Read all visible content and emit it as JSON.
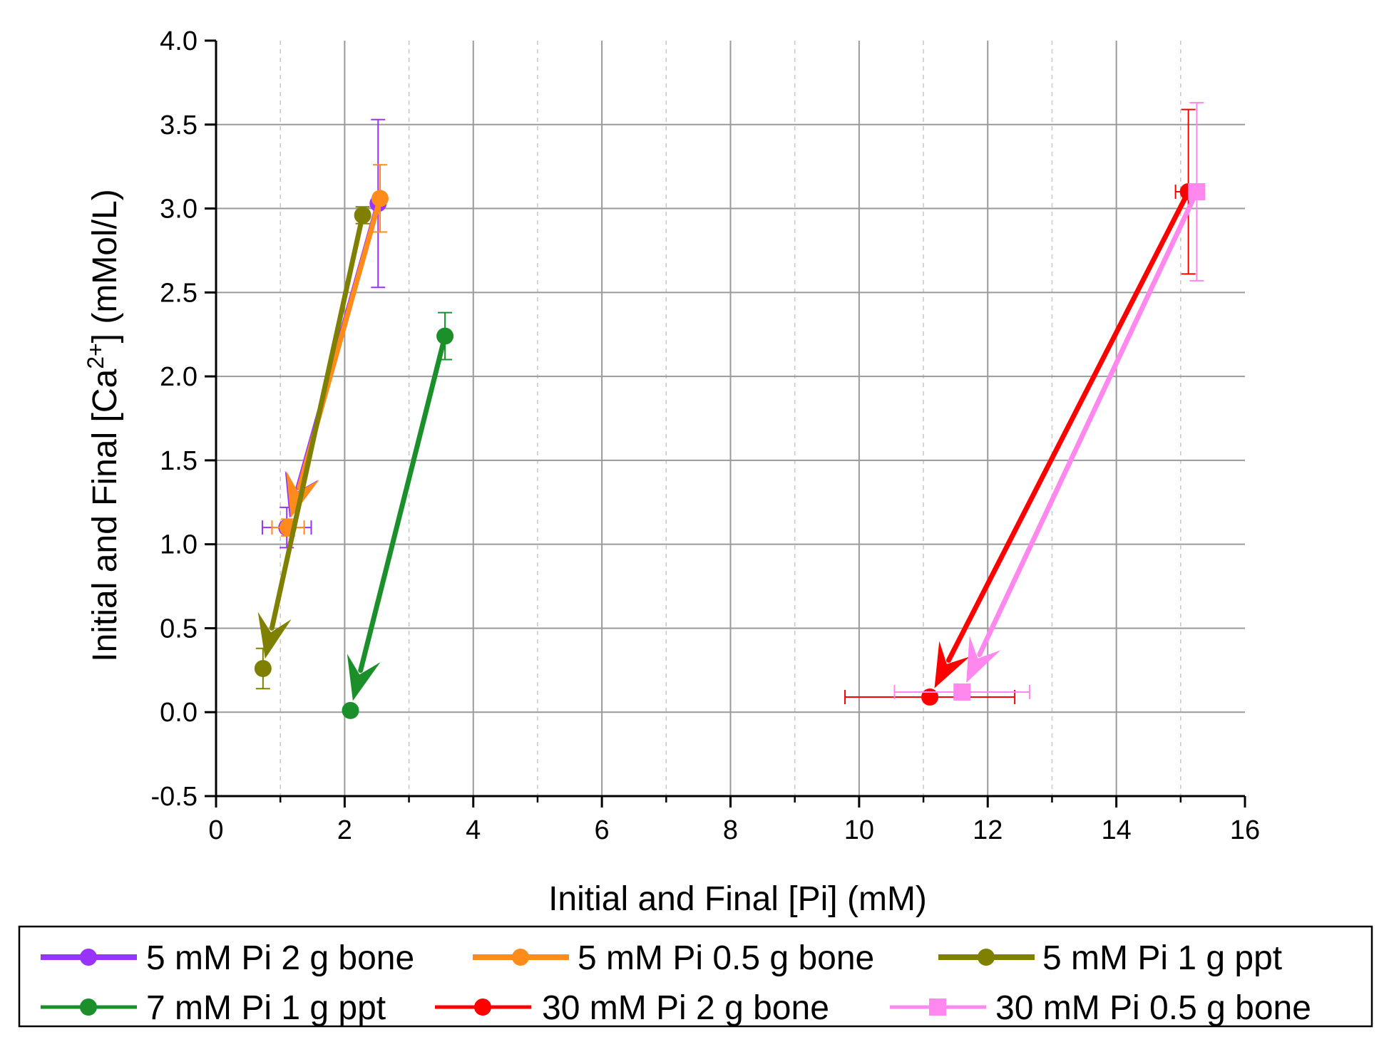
{
  "chart_data": {
    "type": "line",
    "title": "",
    "xlabel": "Initial and Final [Pi] (mM)",
    "ylabel_prefix": "Initial and Final [Ca",
    "ylabel_superscript": "2+",
    "ylabel_suffix": "] (mMol/L)",
    "xlim": [
      0,
      16
    ],
    "ylim": [
      -0.5,
      4.0
    ],
    "x_ticks": [
      "0",
      "2",
      "4",
      "6",
      "8",
      "10",
      "12",
      "14",
      "16"
    ],
    "y_ticks": [
      "-0.5",
      "0.0",
      "0.5",
      "1.0",
      "1.5",
      "2.0",
      "2.5",
      "3.0",
      "3.5",
      "4.0"
    ],
    "grid": true,
    "legend_position": "bottom",
    "series": [
      {
        "name": "5 mM Pi 2 g bone",
        "color": "#9933ff",
        "marker": "circle",
        "initial": {
          "x": 2.52,
          "y": 3.03,
          "y_err": 0.5,
          "x_err": 0
        },
        "final": {
          "x": 1.1,
          "y": 1.1,
          "y_err": 0.12,
          "x_err": 0.38
        }
      },
      {
        "name": "5 mM Pi 0.5 g bone",
        "color": "#ff8c1a",
        "marker": "circle",
        "initial": {
          "x": 2.55,
          "y": 3.06,
          "y_err": 0.2,
          "x_err": 0
        },
        "final": {
          "x": 1.12,
          "y": 1.1,
          "y_err": 0.05,
          "x_err": 0.25
        }
      },
      {
        "name": "5 mM Pi 1 g ppt",
        "color": "#808000",
        "marker": "circle",
        "initial": {
          "x": 2.28,
          "y": 2.96,
          "y_err": 0.05,
          "x_err": 0
        },
        "final": {
          "x": 0.73,
          "y": 0.26,
          "y_err": 0.12,
          "x_err": 0
        }
      },
      {
        "name": "7 mM Pi 1 g ppt",
        "color": "#1a8f2a",
        "marker": "circle",
        "initial": {
          "x": 3.56,
          "y": 2.24,
          "y_err": 0.14,
          "x_err": 0
        },
        "final": {
          "x": 2.09,
          "y": 0.01,
          "y_err": 0,
          "x_err": 0
        }
      },
      {
        "name": "30 mM Pi 2 g bone",
        "color": "#ff0000",
        "marker": "circle",
        "initial": {
          "x": 15.12,
          "y": 3.1,
          "y_err": 0.49,
          "x_err": 0.2
        },
        "final": {
          "x": 11.1,
          "y": 0.09,
          "y_err": 0,
          "x_err": 1.32
        }
      },
      {
        "name": "30 mM Pi 0.5 g bone",
        "color": "#ff88ee",
        "marker": "square",
        "initial": {
          "x": 15.25,
          "y": 3.1,
          "y_err": 0.53,
          "x_err": 0.12
        },
        "final": {
          "x": 11.6,
          "y": 0.12,
          "y_err": 0,
          "x_err": 1.05
        }
      }
    ]
  }
}
